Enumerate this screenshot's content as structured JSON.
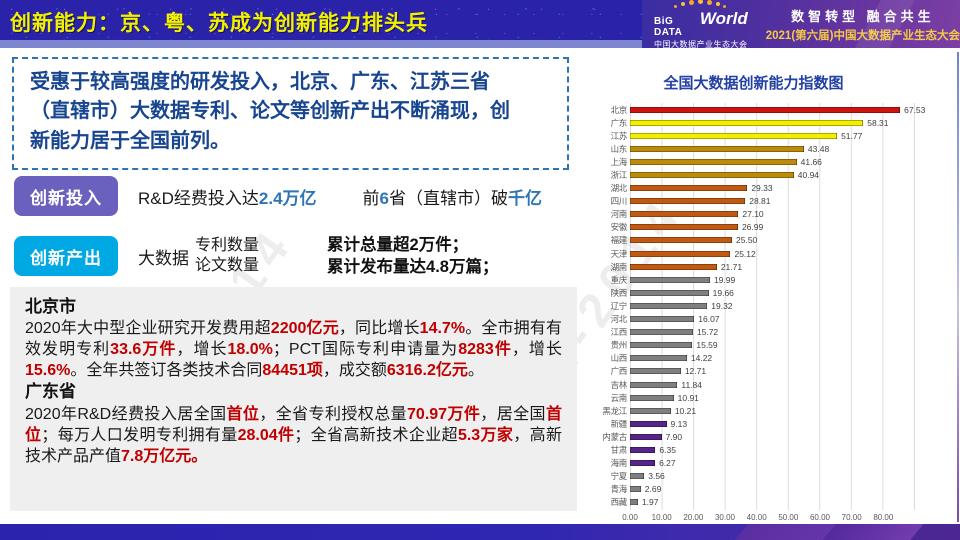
{
  "header": {
    "title": "创新能力：京、粤、苏成为创新能力排头兵",
    "logo": {
      "name_left": "BiG DATA",
      "name_right": "World",
      "subtitle": "中国大数据产业生态大会"
    },
    "slogan_line1": "数智转型  融合共生",
    "slogan_line2": "2021(第六届)中国大数据产业生态大会"
  },
  "watermark": {
    "text": "ccid-2014"
  },
  "intro": {
    "lines": [
      "受惠于较高强度的研发投入，北京、广东、江苏三省",
      "（直辖市）大数据专利、论文等创新产出不断涌现，创",
      "新能力居于全国前列。"
    ]
  },
  "investment": {
    "badge": "创新投入",
    "line1": [
      {
        "t": "R&D经费投入达"
      },
      {
        "t": "2.4万亿",
        "c": "hl"
      }
    ],
    "line2": [
      {
        "t": "前"
      },
      {
        "t": "6",
        "c": "hl"
      },
      {
        "t": "省（直辖市）破"
      },
      {
        "t": "千亿",
        "c": "hl"
      }
    ]
  },
  "output": {
    "badge": "创新产出",
    "lead": "大数据",
    "items": [
      "专利数量",
      "论文数量"
    ],
    "results": [
      "累计总量超2万件；",
      "累计发布量达4.8万篇；"
    ]
  },
  "report": {
    "paragraphs": [
      {
        "heading": "北京市",
        "segments": [
          {
            "t": "2020年大中型企业研究开发费用超"
          },
          {
            "t": "2200亿元",
            "c": "red"
          },
          {
            "t": "，同比增长"
          },
          {
            "t": "14.7%",
            "c": "red"
          },
          {
            "t": "。全市拥有有效发明专利"
          },
          {
            "t": "33.6万件",
            "c": "red"
          },
          {
            "t": "，增长"
          },
          {
            "t": "18.0%",
            "c": "red"
          },
          {
            "t": "；PCT国际专利申请量为"
          },
          {
            "t": "8283件",
            "c": "red"
          },
          {
            "t": "，增长"
          },
          {
            "t": "15.6%",
            "c": "red"
          },
          {
            "t": "。全年共签订各类技术合同"
          },
          {
            "t": "84451项",
            "c": "red"
          },
          {
            "t": "，成交额"
          },
          {
            "t": "6316.2亿元",
            "c": "red"
          },
          {
            "t": "。"
          }
        ]
      },
      {
        "heading": "广东省",
        "segments": [
          {
            "t": "2020年R&D经费投入居全国"
          },
          {
            "t": "首位",
            "c": "red"
          },
          {
            "t": "，全省专利授权总量"
          },
          {
            "t": "70.97万件",
            "c": "red"
          },
          {
            "t": "，居全国"
          },
          {
            "t": "首位",
            "c": "red"
          },
          {
            "t": "；每万人口发明专利拥有量"
          },
          {
            "t": "28.04件",
            "c": "red"
          },
          {
            "t": "；全省高新技术企业超"
          },
          {
            "t": "5.3万家",
            "c": "red"
          },
          {
            "t": "，高新技术产品产值"
          },
          {
            "t": "7.8万亿元。",
            "c": "red"
          }
        ]
      }
    ]
  },
  "chart_data": {
    "type": "bar",
    "orientation": "horizontal",
    "title": "全国大数据创新能力指数图",
    "categories": [
      "北京",
      "广东",
      "江苏",
      "山东",
      "上海",
      "浙江",
      "湖北",
      "四川",
      "河南",
      "安徽",
      "福建",
      "天津",
      "湖南",
      "重庆",
      "陕西",
      "辽宁",
      "河北",
      "江西",
      "贵州",
      "山西",
      "广西",
      "吉林",
      "云南",
      "黑龙江",
      "新疆",
      "内蒙古",
      "甘肃",
      "海南",
      "宁夏",
      "青海",
      "西藏"
    ],
    "values": [
      67.53,
      58.31,
      51.77,
      43.48,
      41.66,
      40.94,
      29.33,
      28.81,
      27.1,
      26.99,
      25.5,
      25.12,
      21.71,
      19.99,
      19.66,
      19.32,
      16.07,
      15.72,
      15.59,
      14.22,
      12.71,
      11.84,
      10.91,
      10.21,
      9.13,
      7.9,
      6.35,
      6.27,
      3.56,
      2.69,
      1.97
    ],
    "value_labels": [
      "67.53",
      "58.31",
      "51.77",
      "43.48",
      "41.66",
      "40.94",
      "29.33",
      "28.81",
      "27.10",
      "26.99",
      "25.50",
      "25.12",
      "21.71",
      "19.99",
      "19.66",
      "19.32",
      "16.07",
      "15.72",
      "15.59",
      "14.22",
      "12.71",
      "11.84",
      "10.91",
      "10.21",
      "9.13",
      "7.90",
      "6.35",
      "6.27",
      "3.56",
      "2.69",
      "1.97"
    ],
    "bar_colors": [
      "red",
      "yellow",
      "yellow",
      "gold",
      "gold",
      "gold",
      "orange",
      "orange",
      "orange",
      "orange",
      "orange",
      "orange",
      "orange",
      "gray",
      "gray",
      "gray",
      "gray",
      "gray",
      "gray",
      "gray",
      "gray",
      "gray",
      "gray",
      "gray",
      "purple",
      "purple",
      "purple",
      "purple",
      "gray",
      "gray",
      "gray"
    ],
    "palette": {
      "red": "#CC1410",
      "yellow": "#F2EE00",
      "gold": "#BD8B0B",
      "orange": "#C05A12",
      "gray": "#7F7F7F",
      "purple": "#55258A"
    },
    "xlabel": "",
    "ylabel": "",
    "xlim": [
      0,
      90
    ],
    "grid": true,
    "x_ticks": [
      "0.00",
      "10.00",
      "20.00",
      "30.00",
      "40.00",
      "50.00",
      "60.00",
      "70.00",
      "80.00"
    ]
  }
}
